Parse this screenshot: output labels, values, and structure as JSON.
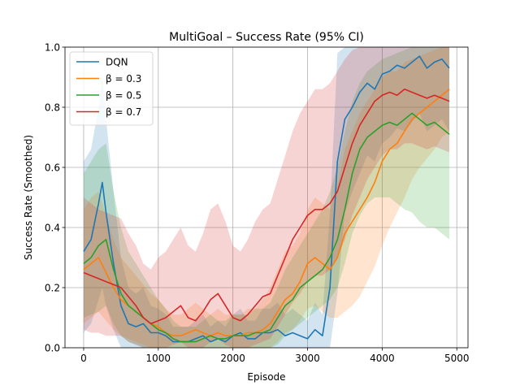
{
  "chart_data": {
    "type": "line",
    "title": "MultiGoal – Success Rate (95% CI)",
    "xlabel": "Episode",
    "ylabel": "Success Rate (Smoothed)",
    "xlim": [
      -250,
      5150
    ],
    "ylim": [
      0.0,
      1.0
    ],
    "xticks": [
      0,
      1000,
      2000,
      3000,
      4000,
      5000
    ],
    "xtick_labels": [
      "0",
      "1000",
      "2000",
      "3000",
      "4000",
      "5000"
    ],
    "yticks": [
      0.0,
      0.2,
      0.4,
      0.6,
      0.8,
      1.0
    ],
    "ytick_labels": [
      "0.0",
      "0.2",
      "0.4",
      "0.6",
      "0.8",
      "1.0"
    ],
    "grid": true,
    "legend_position": "top-left",
    "confidence_band": "95% CI",
    "series": [
      {
        "name": "DQN",
        "color": "#1f77b4",
        "x": [
          0,
          100,
          200,
          250,
          300,
          400,
          500,
          600,
          700,
          800,
          900,
          1000,
          1100,
          1200,
          1300,
          1400,
          1500,
          1600,
          1700,
          1800,
          1900,
          2000,
          2100,
          2200,
          2300,
          2400,
          2500,
          2600,
          2700,
          2800,
          2900,
          3000,
          3100,
          3200,
          3300,
          3400,
          3500,
          3600,
          3700,
          3800,
          3900,
          4000,
          4100,
          4200,
          4300,
          4400,
          4500,
          4600,
          4700,
          4800,
          4900
        ],
        "y": [
          0.32,
          0.36,
          0.48,
          0.55,
          0.45,
          0.28,
          0.14,
          0.08,
          0.07,
          0.08,
          0.05,
          0.05,
          0.04,
          0.02,
          0.02,
          0.02,
          0.03,
          0.04,
          0.02,
          0.03,
          0.02,
          0.04,
          0.05,
          0.03,
          0.03,
          0.05,
          0.05,
          0.06,
          0.04,
          0.05,
          0.04,
          0.03,
          0.06,
          0.04,
          0.2,
          0.62,
          0.76,
          0.8,
          0.85,
          0.88,
          0.86,
          0.91,
          0.92,
          0.94,
          0.93,
          0.95,
          0.97,
          0.93,
          0.95,
          0.96,
          0.93
        ],
        "ci_low": [
          0.05,
          0.08,
          0.16,
          0.2,
          0.14,
          0.06,
          0.0,
          0.0,
          0.0,
          0.0,
          0.0,
          0.0,
          0.0,
          0.0,
          0.0,
          0.0,
          0.0,
          0.0,
          0.0,
          0.0,
          0.0,
          0.0,
          0.0,
          0.0,
          0.0,
          0.0,
          0.0,
          0.0,
          0.0,
          0.0,
          0.0,
          0.0,
          0.0,
          0.0,
          0.0,
          0.18,
          0.45,
          0.52,
          0.58,
          0.64,
          0.62,
          0.68,
          0.7,
          0.73,
          0.72,
          0.75,
          0.78,
          0.72,
          0.74,
          0.76,
          0.72
        ],
        "ci_high": [
          0.62,
          0.66,
          0.8,
          0.9,
          0.76,
          0.52,
          0.3,
          0.2,
          0.18,
          0.2,
          0.14,
          0.13,
          0.11,
          0.07,
          0.07,
          0.07,
          0.09,
          0.11,
          0.07,
          0.09,
          0.07,
          0.11,
          0.13,
          0.09,
          0.09,
          0.13,
          0.13,
          0.15,
          0.11,
          0.13,
          0.11,
          0.09,
          0.15,
          0.11,
          0.45,
          0.98,
          1.0,
          1.0,
          1.0,
          1.0,
          1.0,
          1.0,
          1.0,
          1.0,
          1.0,
          1.0,
          1.0,
          1.0,
          1.0,
          1.0,
          1.0
        ]
      },
      {
        "name": "β = 0.3",
        "color": "#ff7f0e",
        "x": [
          0,
          100,
          200,
          300,
          400,
          500,
          600,
          700,
          800,
          900,
          1000,
          1100,
          1200,
          1300,
          1400,
          1500,
          1600,
          1700,
          1800,
          1900,
          2000,
          2100,
          2200,
          2300,
          2400,
          2500,
          2600,
          2700,
          2800,
          2900,
          3000,
          3100,
          3200,
          3300,
          3400,
          3500,
          3600,
          3700,
          3800,
          3900,
          4000,
          4100,
          4200,
          4300,
          4400,
          4500,
          4600,
          4700,
          4800,
          4900
        ],
        "y": [
          0.26,
          0.28,
          0.3,
          0.25,
          0.2,
          0.16,
          0.14,
          0.12,
          0.1,
          0.08,
          0.07,
          0.05,
          0.04,
          0.04,
          0.05,
          0.06,
          0.05,
          0.04,
          0.05,
          0.04,
          0.04,
          0.04,
          0.05,
          0.05,
          0.06,
          0.08,
          0.12,
          0.16,
          0.18,
          0.22,
          0.28,
          0.3,
          0.28,
          0.26,
          0.3,
          0.38,
          0.42,
          0.46,
          0.5,
          0.55,
          0.62,
          0.66,
          0.68,
          0.72,
          0.76,
          0.78,
          0.8,
          0.82,
          0.84,
          0.86
        ],
        "ci_low": [
          0.08,
          0.1,
          0.12,
          0.09,
          0.06,
          0.04,
          0.03,
          0.02,
          0.01,
          0.0,
          0.0,
          0.0,
          0.0,
          0.0,
          0.0,
          0.0,
          0.0,
          0.0,
          0.0,
          0.0,
          0.0,
          0.0,
          0.0,
          0.0,
          0.0,
          0.0,
          0.02,
          0.05,
          0.06,
          0.09,
          0.13,
          0.14,
          0.12,
          0.1,
          0.1,
          0.12,
          0.14,
          0.17,
          0.22,
          0.27,
          0.34,
          0.4,
          0.45,
          0.5,
          0.56,
          0.6,
          0.63,
          0.66,
          0.7,
          0.72
        ],
        "ci_high": [
          0.46,
          0.5,
          0.52,
          0.44,
          0.36,
          0.3,
          0.27,
          0.24,
          0.21,
          0.18,
          0.16,
          0.13,
          0.11,
          0.11,
          0.13,
          0.15,
          0.13,
          0.11,
          0.13,
          0.11,
          0.11,
          0.11,
          0.13,
          0.13,
          0.16,
          0.2,
          0.26,
          0.32,
          0.34,
          0.38,
          0.46,
          0.5,
          0.48,
          0.46,
          0.54,
          0.66,
          0.72,
          0.78,
          0.82,
          0.86,
          0.9,
          0.92,
          0.92,
          0.95,
          0.96,
          0.97,
          0.98,
          0.99,
          1.0,
          1.0
        ]
      },
      {
        "name": "β = 0.5",
        "color": "#2ca02c",
        "x": [
          0,
          100,
          200,
          300,
          400,
          500,
          600,
          700,
          800,
          900,
          1000,
          1100,
          1200,
          1300,
          1400,
          1500,
          1600,
          1700,
          1800,
          1900,
          2000,
          2100,
          2200,
          2300,
          2400,
          2500,
          2600,
          2700,
          2800,
          2900,
          3000,
          3100,
          3200,
          3300,
          3400,
          3500,
          3600,
          3700,
          3800,
          3900,
          4000,
          4100,
          4200,
          4300,
          4400,
          4500,
          4600,
          4700,
          4800,
          4900
        ],
        "y": [
          0.28,
          0.3,
          0.34,
          0.36,
          0.26,
          0.18,
          0.14,
          0.12,
          0.1,
          0.08,
          0.06,
          0.05,
          0.03,
          0.02,
          0.02,
          0.02,
          0.03,
          0.04,
          0.03,
          0.03,
          0.04,
          0.04,
          0.04,
          0.05,
          0.05,
          0.06,
          0.1,
          0.14,
          0.16,
          0.2,
          0.22,
          0.24,
          0.26,
          0.3,
          0.36,
          0.46,
          0.58,
          0.66,
          0.7,
          0.72,
          0.74,
          0.75,
          0.74,
          0.76,
          0.78,
          0.76,
          0.74,
          0.75,
          0.73,
          0.71
        ],
        "ci_low": [
          0.1,
          0.11,
          0.12,
          0.14,
          0.08,
          0.04,
          0.02,
          0.01,
          0.0,
          0.0,
          0.0,
          0.0,
          0.0,
          0.0,
          0.0,
          0.0,
          0.0,
          0.0,
          0.0,
          0.0,
          0.0,
          0.0,
          0.0,
          0.0,
          0.0,
          0.0,
          0.01,
          0.04,
          0.06,
          0.08,
          0.1,
          0.12,
          0.14,
          0.16,
          0.2,
          0.28,
          0.38,
          0.44,
          0.48,
          0.5,
          0.5,
          0.5,
          0.48,
          0.46,
          0.45,
          0.42,
          0.4,
          0.4,
          0.38,
          0.36
        ],
        "ci_high": [
          0.58,
          0.62,
          0.66,
          0.68,
          0.52,
          0.4,
          0.32,
          0.28,
          0.24,
          0.2,
          0.16,
          0.13,
          0.09,
          0.07,
          0.07,
          0.07,
          0.09,
          0.11,
          0.09,
          0.09,
          0.11,
          0.11,
          0.11,
          0.13,
          0.13,
          0.15,
          0.2,
          0.26,
          0.3,
          0.34,
          0.38,
          0.42,
          0.46,
          0.52,
          0.6,
          0.72,
          0.82,
          0.88,
          0.92,
          0.94,
          0.96,
          0.97,
          0.98,
          0.99,
          1.0,
          1.0,
          1.0,
          1.0,
          1.0,
          1.0
        ]
      },
      {
        "name": "β = 0.7",
        "color": "#d62728",
        "x": [
          0,
          100,
          200,
          300,
          400,
          500,
          600,
          700,
          800,
          900,
          1000,
          1100,
          1200,
          1300,
          1400,
          1500,
          1600,
          1700,
          1800,
          1900,
          2000,
          2100,
          2200,
          2300,
          2400,
          2500,
          2600,
          2700,
          2800,
          2900,
          3000,
          3100,
          3200,
          3300,
          3400,
          3500,
          3600,
          3700,
          3800,
          3900,
          4000,
          4100,
          4200,
          4300,
          4400,
          4500,
          4600,
          4700,
          4800,
          4900
        ],
        "y": [
          0.25,
          0.24,
          0.23,
          0.22,
          0.21,
          0.2,
          0.17,
          0.14,
          0.1,
          0.08,
          0.09,
          0.1,
          0.12,
          0.14,
          0.1,
          0.09,
          0.12,
          0.16,
          0.18,
          0.14,
          0.1,
          0.09,
          0.11,
          0.14,
          0.17,
          0.18,
          0.24,
          0.3,
          0.36,
          0.4,
          0.44,
          0.46,
          0.46,
          0.48,
          0.52,
          0.6,
          0.68,
          0.74,
          0.78,
          0.82,
          0.84,
          0.85,
          0.84,
          0.86,
          0.85,
          0.84,
          0.83,
          0.84,
          0.83,
          0.82
        ],
        "ci_low": [
          0.06,
          0.05,
          0.05,
          0.04,
          0.04,
          0.04,
          0.02,
          0.01,
          0.0,
          0.0,
          0.0,
          0.0,
          0.01,
          0.02,
          0.0,
          0.0,
          0.0,
          0.02,
          0.03,
          0.01,
          0.0,
          0.0,
          0.0,
          0.01,
          0.02,
          0.03,
          0.07,
          0.11,
          0.15,
          0.18,
          0.22,
          0.24,
          0.24,
          0.26,
          0.3,
          0.36,
          0.44,
          0.5,
          0.56,
          0.6,
          0.64,
          0.66,
          0.66,
          0.68,
          0.68,
          0.67,
          0.66,
          0.67,
          0.66,
          0.65
        ],
        "ci_high": [
          0.5,
          0.48,
          0.46,
          0.45,
          0.44,
          0.43,
          0.38,
          0.34,
          0.28,
          0.26,
          0.3,
          0.32,
          0.36,
          0.4,
          0.34,
          0.32,
          0.38,
          0.46,
          0.48,
          0.42,
          0.34,
          0.32,
          0.36,
          0.42,
          0.46,
          0.48,
          0.56,
          0.64,
          0.72,
          0.78,
          0.82,
          0.86,
          0.86,
          0.88,
          0.92,
          0.96,
          0.99,
          1.0,
          1.0,
          1.0,
          1.0,
          1.0,
          1.0,
          1.0,
          1.0,
          1.0,
          1.0,
          1.0,
          1.0,
          1.0
        ]
      }
    ]
  }
}
